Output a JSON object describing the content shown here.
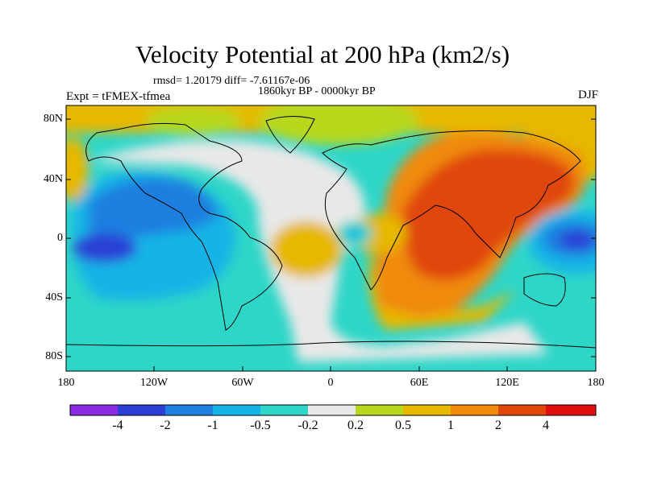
{
  "title": "Velocity Potential at 200 hPa (km2/s)",
  "stats": "rmsd= 1.20179 diff= -7.61167e-06",
  "period": "1860kyr BP - 0000kyr BP",
  "experiment": "Expt = tFMEX-tfmea",
  "season": "DJF",
  "lat_labels": [
    "80N",
    "40N",
    "0",
    "40S",
    "80S"
  ],
  "lon_labels": [
    "180",
    "120W",
    "60W",
    "0",
    "60E",
    "120E",
    "180"
  ],
  "colorbar": {
    "labels": [
      "-4",
      "-2",
      "-1",
      "-0.5",
      "-0.2",
      "0.2",
      "0.5",
      "1",
      "2",
      "4"
    ],
    "colors": [
      "#8a2be2",
      "#2b3fd6",
      "#1f7fe0",
      "#14b4e6",
      "#2ed6c8",
      "#e8e8e8",
      "#b8d81e",
      "#e6b800",
      "#f08a0a",
      "#e0460a",
      "#e00f0f"
    ]
  }
}
